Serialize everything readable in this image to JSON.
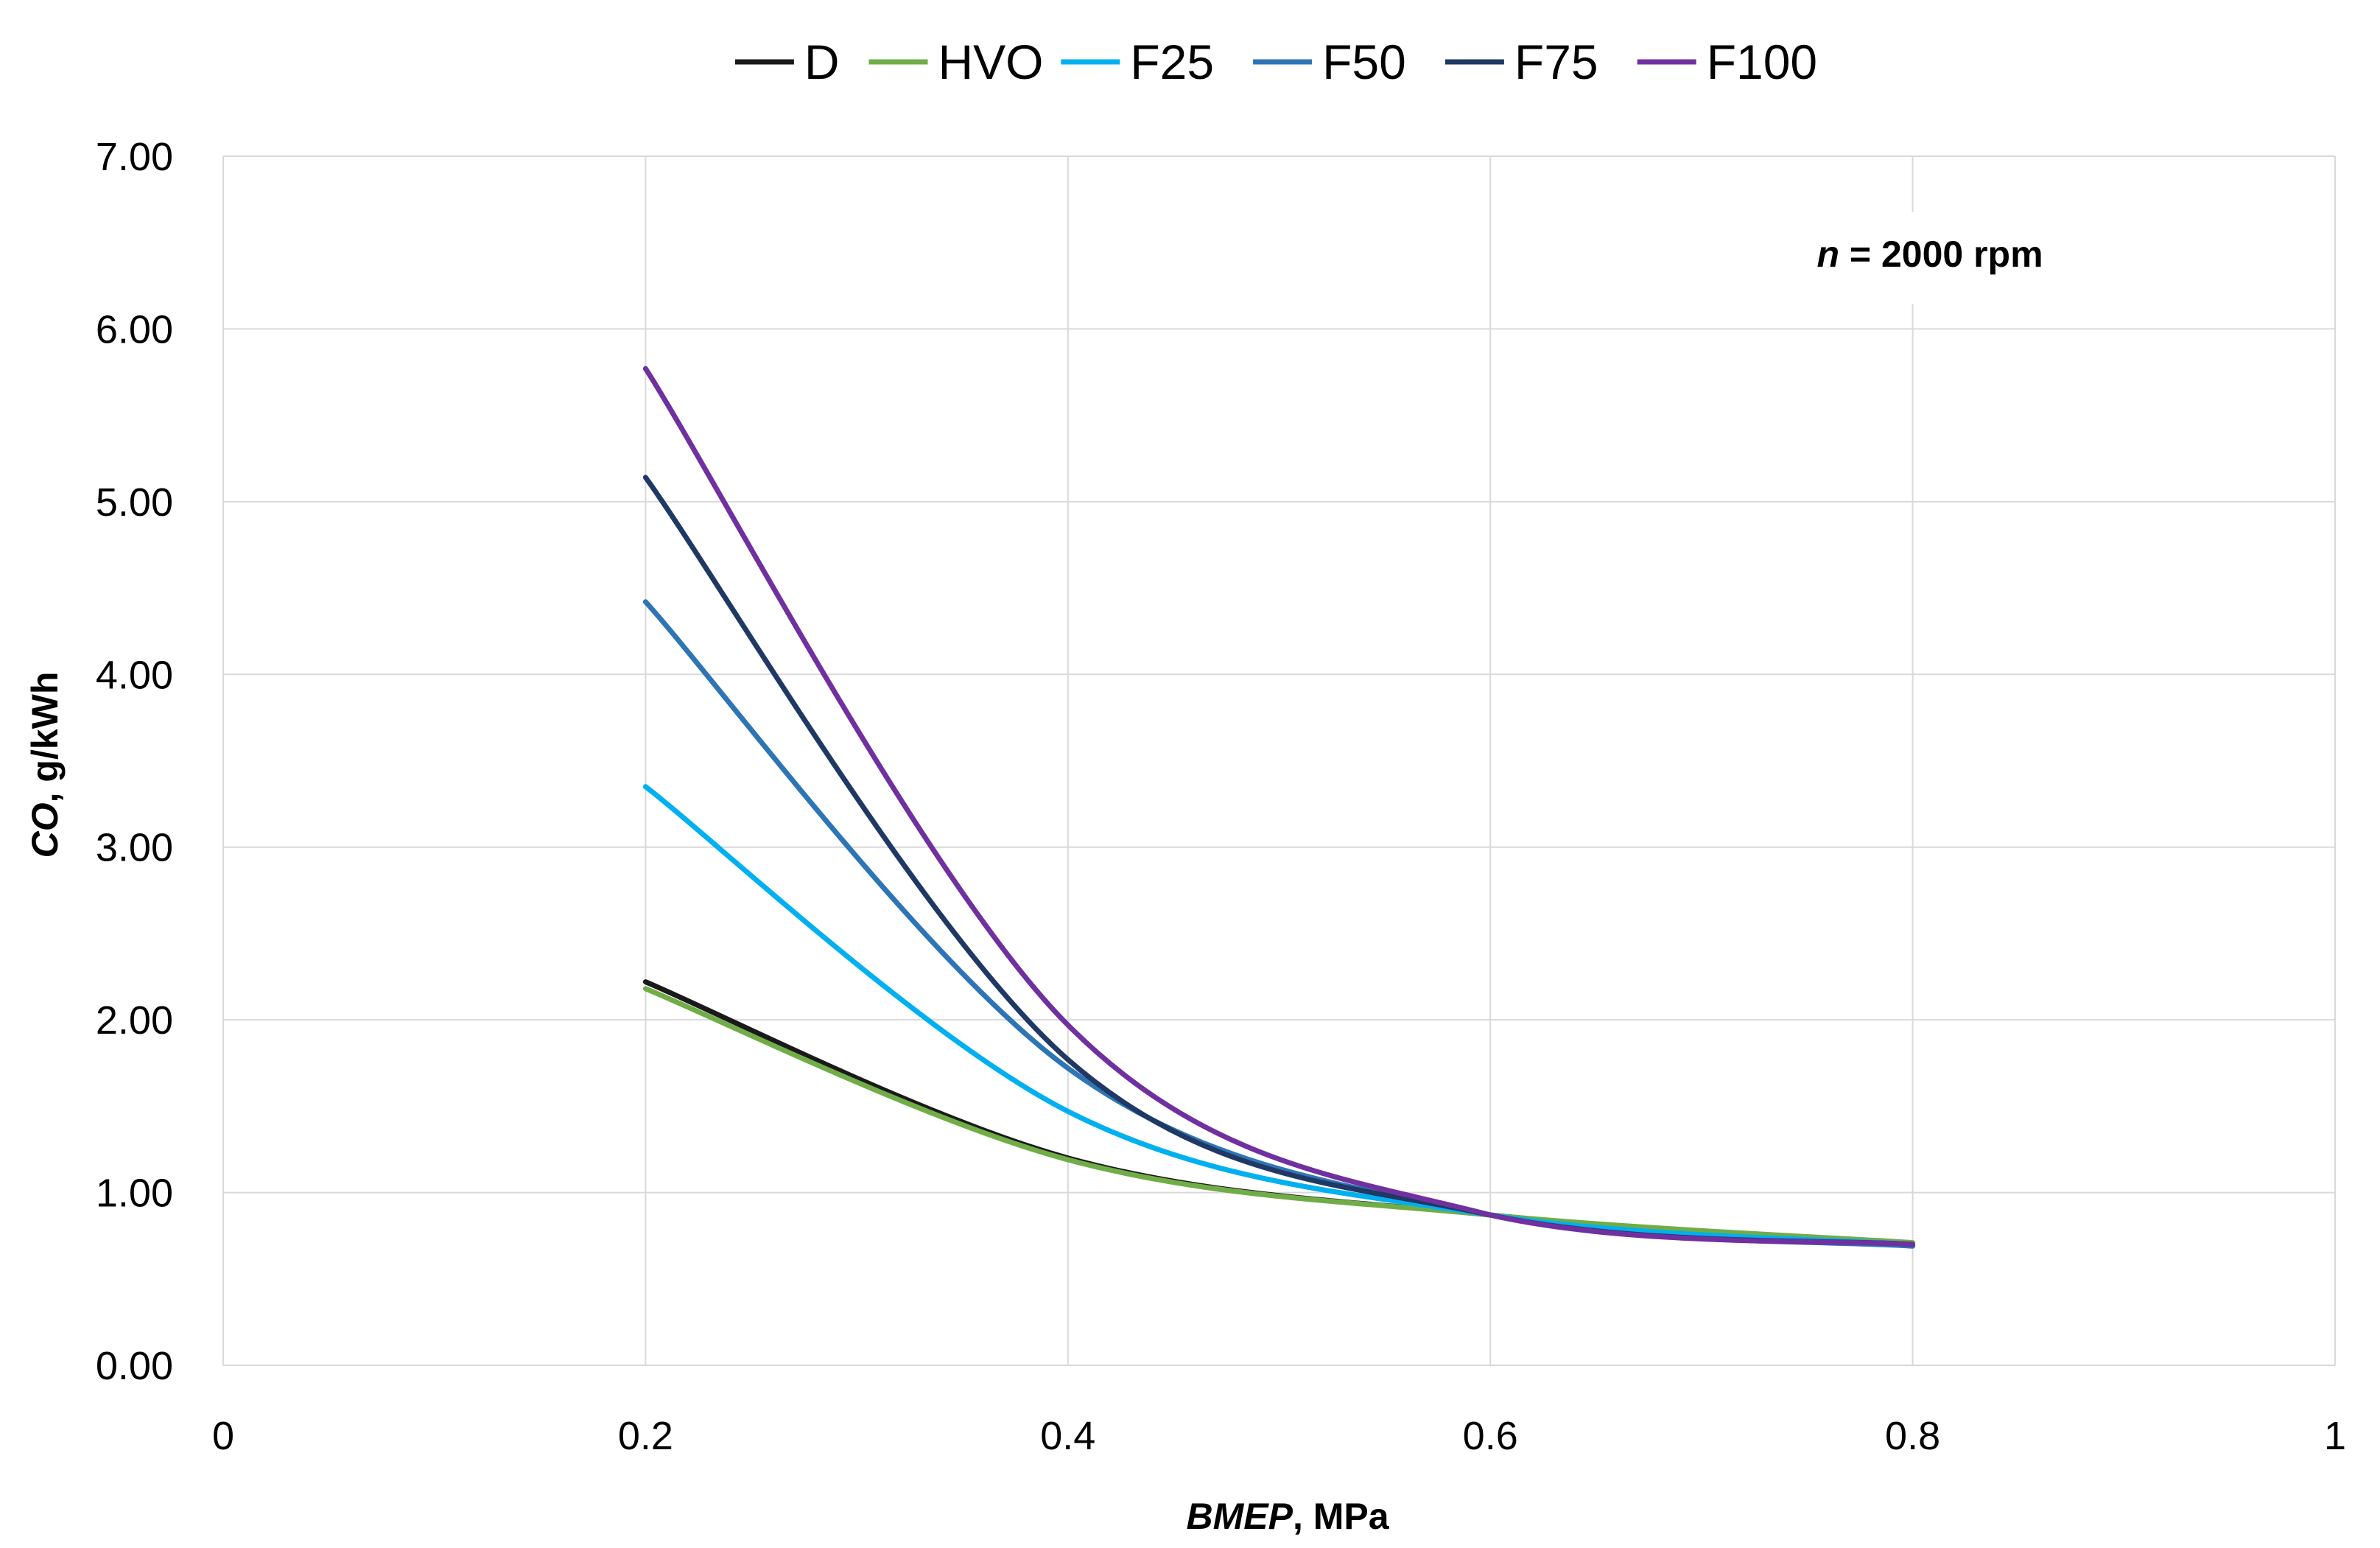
{
  "chart_data": {
    "type": "line",
    "title": "",
    "xlabel": "BMEP, MPa",
    "xlabel_italic": "BMEP",
    "xlabel_rest": ", MPa",
    "ylabel": "CO, g/kWh",
    "ylabel_italic": "CO",
    "ylabel_rest": ", g/kWh",
    "xlim": [
      0,
      1
    ],
    "ylim": [
      0,
      7
    ],
    "x_ticks": [
      0,
      0.2,
      0.4,
      0.6,
      0.8,
      1
    ],
    "x_tick_labels": [
      "0",
      "0.2",
      "0.4",
      "0.6",
      "0.8",
      "1"
    ],
    "y_ticks": [
      0,
      1,
      2,
      3,
      4,
      5,
      6,
      7
    ],
    "y_tick_labels": [
      "0.00",
      "1.00",
      "2.00",
      "3.00",
      "4.00",
      "5.00",
      "6.00",
      "7.00"
    ],
    "grid": true,
    "legend_position": "top",
    "annotation": {
      "italic": "n",
      "rest": " = 2000 rpm",
      "full": "n = 2000 rpm"
    },
    "x": [
      0.2,
      0.4,
      0.6,
      0.8
    ],
    "series": [
      {
        "name": "D",
        "color": "#1a1a1a",
        "values": [
          2.22,
          1.2,
          0.87,
          0.7
        ]
      },
      {
        "name": "HVO",
        "color": "#70ad47",
        "values": [
          2.18,
          1.19,
          0.87,
          0.71
        ]
      },
      {
        "name": "F25",
        "color": "#00b0f0",
        "values": [
          3.35,
          1.47,
          0.87,
          0.7
        ]
      },
      {
        "name": "F50",
        "color": "#2e75b6",
        "values": [
          4.42,
          1.72,
          0.87,
          0.69
        ]
      },
      {
        "name": "F75",
        "color": "#1f3864",
        "values": [
          5.14,
          1.77,
          0.87,
          0.7
        ]
      },
      {
        "name": "F100",
        "color": "#7030a0",
        "values": [
          5.77,
          1.97,
          0.87,
          0.7
        ]
      }
    ]
  }
}
